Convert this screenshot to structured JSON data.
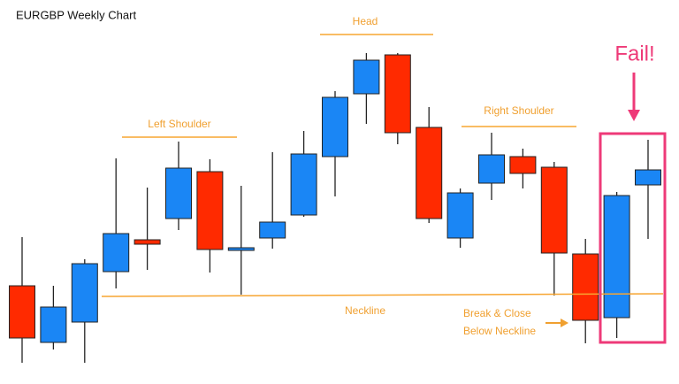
{
  "chart_data": {
    "type": "candlestick",
    "title": "EURGBP Weekly Chart",
    "up_color": "#1a86f5",
    "down_color": "#ff2a00",
    "open": [
      111,
      47,
      70,
      127,
      163,
      187,
      240,
      151,
      165,
      191,
      257,
      328,
      372,
      290,
      165,
      227,
      257,
      245,
      147,
      75,
      225
    ],
    "high": [
      166,
      111,
      141,
      255,
      222,
      274,
      254,
      224,
      262,
      286,
      331,
      374,
      374,
      313,
      221,
      284,
      266,
      251,
      164,
      217,
      276
    ],
    "low": [
      24,
      39,
      24,
      108,
      129,
      174,
      126,
      101,
      153,
      189,
      212,
      294,
      271,
      182,
      154,
      208,
      221,
      100,
      46,
      52,
      164
    ],
    "close": [
      52,
      87,
      136,
      170,
      158,
      244,
      152,
      154,
      183,
      260,
      324,
      366,
      284,
      187,
      216,
      259,
      238,
      148,
      72,
      213,
      242
    ],
    "ylim": [
      0,
      434
    ],
    "annotations": {
      "left_shoulder": "Left Shoulder",
      "head": "Head",
      "right_shoulder": "Right Shoulder",
      "neckline": "Neckline",
      "break": [
        "Break & Close",
        "Below Neckline"
      ],
      "fail": "Fail!"
    }
  }
}
